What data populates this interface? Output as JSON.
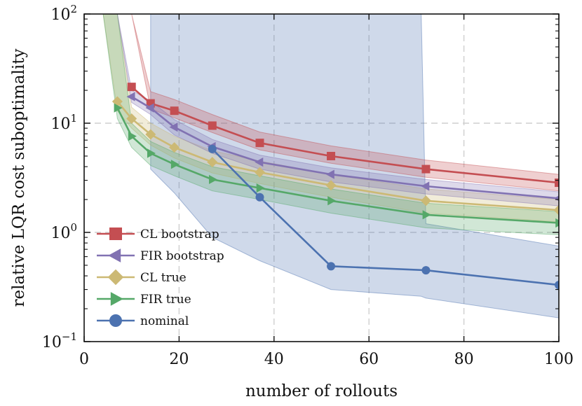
{
  "chart_data": {
    "type": "line",
    "title": "",
    "xlabel": "number of rollouts",
    "ylabel": "relative LQR cost suboptimality",
    "xlim": [
      0,
      100
    ],
    "ylim": [
      0.1,
      100
    ],
    "yscale": "log",
    "grid": true,
    "legend_position": "lower-left",
    "x_ticks": [
      {
        "value": 0,
        "label": "0"
      },
      {
        "value": 20,
        "label": "20"
      },
      {
        "value": 40,
        "label": "40"
      },
      {
        "value": 60,
        "label": "60"
      },
      {
        "value": 80,
        "label": "80"
      },
      {
        "value": 100,
        "label": "100"
      }
    ],
    "y_ticks": [
      {
        "value": 0.1,
        "base": "10",
        "exp": "−1"
      },
      {
        "value": 1,
        "base": "10",
        "exp": "0"
      },
      {
        "value": 10,
        "base": "10",
        "exp": "1"
      },
      {
        "value": 100,
        "base": "10",
        "exp": "2"
      }
    ],
    "series": [
      {
        "name": "CL bootstrap",
        "color": "#C44E52",
        "marker": "square",
        "x": [
          10,
          14,
          19,
          27,
          37,
          52,
          72,
          100
        ],
        "y": [
          21.5,
          15.2,
          13.0,
          9.5,
          6.6,
          5.0,
          3.8,
          2.85
        ],
        "band": {
          "x": [
            10,
            14,
            19,
            27,
            37,
            52,
            72,
            100
          ],
          "lower": [
            100,
            13.5,
            11.2,
            8.2,
            5.7,
            4.3,
            3.2,
            2.4
          ],
          "upper": [
            100,
            19.5,
            16.5,
            12.0,
            8.3,
            6.2,
            4.6,
            3.4
          ],
          "extend": [
            [
              10,
              100,
              100
            ],
            [
              14,
              100,
              100
            ]
          ]
        }
      },
      {
        "name": "FIR bootstrap",
        "color": "#8172B2",
        "marker": "triangle-left",
        "x": [
          10,
          14,
          19,
          27,
          37,
          52,
          72,
          100
        ],
        "y": [
          17.5,
          13.8,
          9.2,
          6.1,
          4.4,
          3.4,
          2.65,
          2.05
        ],
        "band": {
          "x": [
            10,
            14,
            19,
            27,
            37,
            52,
            72,
            100
          ],
          "lower": [
            15.5,
            12.0,
            7.8,
            5.3,
            3.8,
            2.9,
            2.25,
            1.75
          ],
          "upper": [
            20.0,
            16.0,
            10.8,
            7.1,
            5.1,
            3.9,
            3.05,
            2.35
          ]
        }
      },
      {
        "name": "CL true",
        "color": "#CCB974",
        "marker": "diamond",
        "x": [
          7,
          10,
          14,
          19,
          27,
          37,
          52,
          72,
          100
        ],
        "y": [
          15.8,
          11.0,
          7.9,
          6.0,
          4.4,
          3.55,
          2.7,
          1.95,
          1.6
        ],
        "band": {
          "x": [
            7,
            10,
            14,
            19,
            27,
            37,
            52,
            72,
            100
          ],
          "lower": [
            13.0,
            9.0,
            6.3,
            4.8,
            3.5,
            2.8,
            2.1,
            1.5,
            1.25
          ],
          "upper": [
            100,
            14.0,
            10.0,
            7.6,
            5.6,
            4.5,
            3.4,
            2.5,
            2.0
          ]
        }
      },
      {
        "name": "FIR true",
        "color": "#55A868",
        "marker": "triangle-right",
        "x": [
          7,
          10,
          14,
          19,
          27,
          37,
          52,
          72,
          100
        ],
        "y": [
          13.8,
          7.6,
          5.3,
          4.2,
          3.05,
          2.55,
          1.95,
          1.45,
          1.22
        ],
        "band": {
          "x": [
            7,
            10,
            14,
            19,
            27,
            37,
            52,
            72,
            100
          ],
          "lower": [
            11.0,
            6.0,
            4.1,
            3.3,
            2.4,
            2.0,
            1.5,
            1.1,
            0.95
          ],
          "upper": [
            100,
            10.0,
            6.8,
            5.4,
            4.0,
            3.3,
            2.5,
            1.85,
            1.55
          ]
        }
      },
      {
        "name": "nominal",
        "color": "#4C72B0",
        "marker": "circle",
        "x": [
          27,
          37,
          52,
          72,
          100
        ],
        "y": [
          5.8,
          2.1,
          0.49,
          0.45,
          0.33
        ],
        "band": {
          "x": [
            14,
            19,
            27,
            37,
            52,
            71,
            72,
            100
          ],
          "lower": [
            3.8,
            2.3,
            0.9,
            0.55,
            0.3,
            0.26,
            0.25,
            0.165
          ],
          "upper": [
            100,
            100,
            100,
            100,
            100,
            100,
            1.2,
            0.75
          ]
        }
      }
    ]
  }
}
